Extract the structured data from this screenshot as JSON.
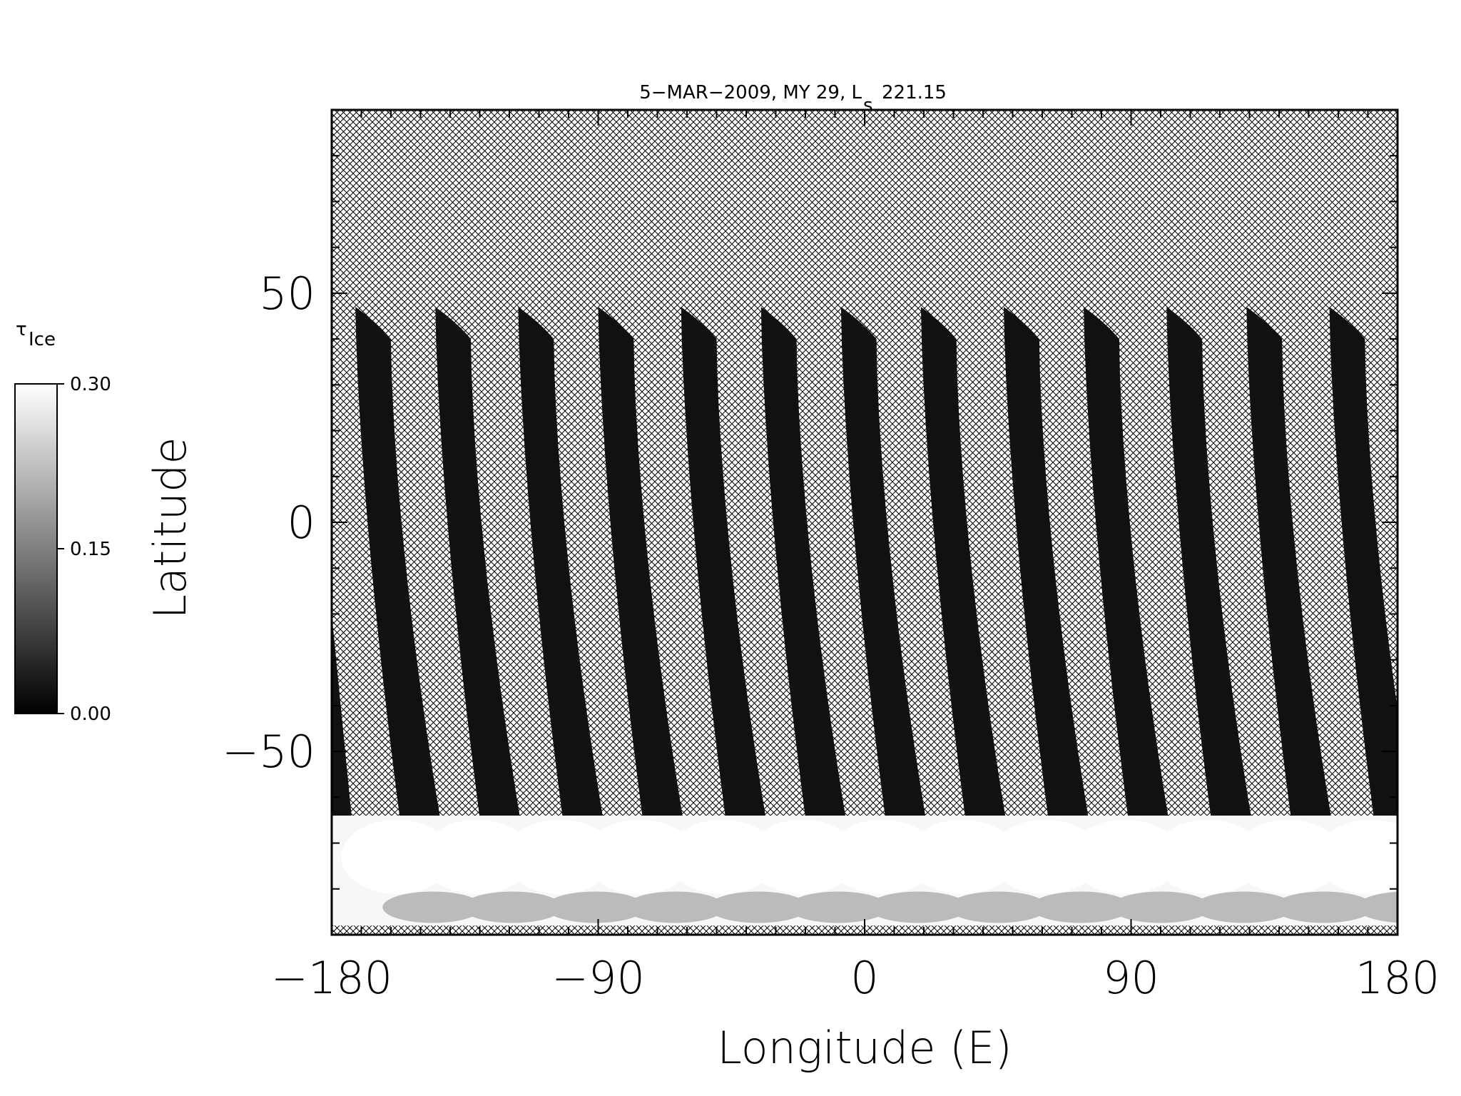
{
  "chart_data": {
    "type": "heatmap",
    "title": "5−MAR−2009, MY 29,  L",
    "title_subscript": "s",
    "title_value": "221.15",
    "xlabel": "Longitude (E)",
    "ylabel": "Latitude",
    "xlim": [
      -180,
      180
    ],
    "ylim": [
      -90,
      90
    ],
    "xticks": [
      {
        "value": -180,
        "label": "−180"
      },
      {
        "value": -90,
        "label": "−90"
      },
      {
        "value": 0,
        "label": "0"
      },
      {
        "value": 90,
        "label": "90"
      },
      {
        "value": 180,
        "label": "180"
      }
    ],
    "yticks": [
      {
        "value": -50,
        "label": "−50"
      },
      {
        "value": 0,
        "label": "0"
      },
      {
        "value": 50,
        "label": "50"
      }
    ],
    "minor_x_step": 10,
    "minor_y_step": 10,
    "no_data_fill": "crosshatch",
    "colorbar": {
      "symbol": "τ",
      "subscript": "Ice",
      "min": 0.0,
      "max": 0.3,
      "ticks": [
        {
          "value": 0.3,
          "label": "0.30"
        },
        {
          "value": 0.15,
          "label": "0.15"
        },
        {
          "value": 0.0,
          "label": "0.00"
        }
      ],
      "colormap": "grayscale",
      "low_color": "#000000",
      "high_color": "#ffffff"
    },
    "swath_top_longitudes": [
      -172,
      -145,
      -117,
      -90,
      -62,
      -35,
      -8,
      19,
      47,
      74,
      102,
      129,
      157
    ],
    "swath_top_latitude": 47,
    "swath_bottom_latitude": -66,
    "swath_width_deg": 15,
    "swath_drift_deg": 17,
    "typical_tau_swath": 0.02,
    "typical_tau_polar_hood": 0.29,
    "polar_hood_latitude_range": [
      -88,
      -64
    ]
  }
}
